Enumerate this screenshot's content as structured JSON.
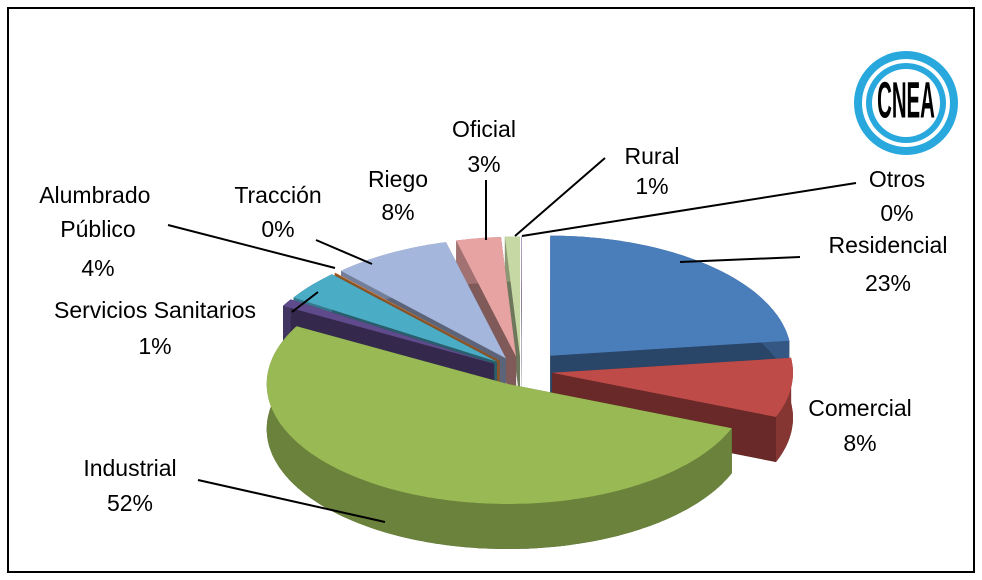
{
  "chart_data": {
    "type": "pie3d",
    "logo": "CNEA",
    "categories": [
      "Residencial",
      "Comercial",
      "Industrial",
      "Servicios Sanitarios",
      "Alumbrado Público",
      "Tracción",
      "Riego",
      "Oficial",
      "Rural",
      "Otros"
    ],
    "values": [
      23,
      8,
      52,
      1,
      4,
      0,
      8,
      3,
      1,
      0
    ],
    "value_labels": [
      "23%",
      "8%",
      "52%",
      "1%",
      "4%",
      "0%",
      "8%",
      "3%",
      "1%",
      "0%"
    ],
    "colors": [
      "#4a7ebb",
      "#be4b48",
      "#98b954",
      "#5f4b8b",
      "#4bacc6",
      "#f79646",
      "#a5b6dc",
      "#e6a3a2",
      "#c6d9a5",
      "#b3a2c7"
    ]
  }
}
